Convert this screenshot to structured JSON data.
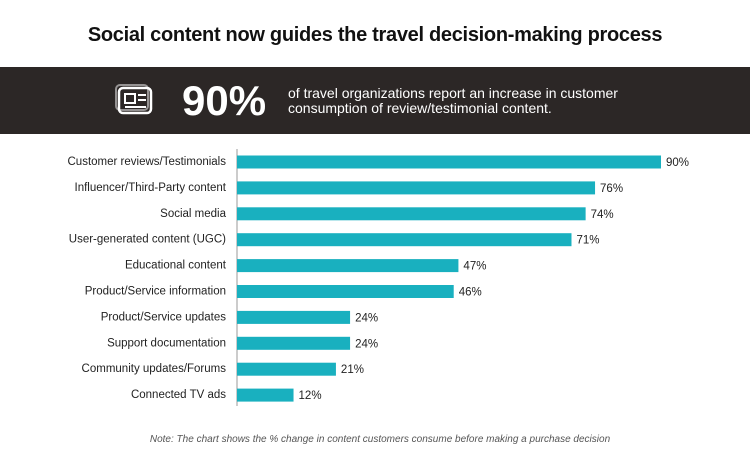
{
  "chart_data": {
    "type": "bar",
    "orientation": "horizontal",
    "title": "Social content now guides the travel decision-making process",
    "callout": {
      "figure": "90%",
      "text": "of travel organizations report an increase in customer consumption of review/testimonial content."
    },
    "categories": [
      "Customer reviews/Testimonials",
      "Influencer/Third-Party content",
      "Social media",
      "User-generated content (UGC)",
      "Educational content",
      "Product/Service information",
      "Product/Service updates",
      "Support documentation",
      "Community updates/Forums",
      "Connected TV ads"
    ],
    "values": [
      90,
      76,
      74,
      71,
      47,
      46,
      24,
      24,
      21,
      12
    ],
    "value_labels": [
      "90%",
      "76%",
      "74%",
      "71%",
      "47%",
      "46%",
      "24%",
      "24%",
      "21%",
      "12%"
    ],
    "color": "#19b0bf",
    "note": "Note: The chart shows the % change in content customers consume before making a purchase decision"
  }
}
